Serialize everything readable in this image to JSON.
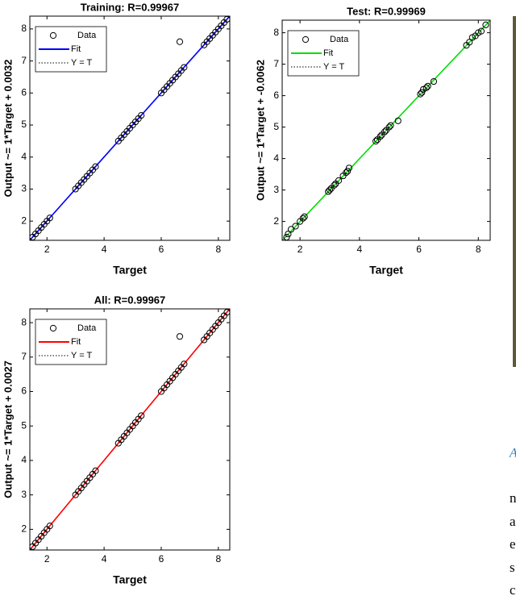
{
  "chart_data": [
    {
      "type": "scatter",
      "title": "Training: R=0.99967",
      "xlabel": "Target",
      "ylabel": "Output ~= 1*Target + 0.0032",
      "xlim": [
        1.4,
        8.4
      ],
      "ylim": [
        1.4,
        8.4
      ],
      "xticks": [
        2,
        4,
        6,
        8
      ],
      "yticks": [
        2,
        3,
        4,
        5,
        6,
        7,
        8
      ],
      "legend": "upper-left",
      "series": [
        {
          "name": "Data",
          "color": "#000000",
          "x": [
            1.5,
            1.6,
            1.7,
            1.8,
            1.9,
            2.0,
            2.1,
            3.0,
            3.1,
            3.2,
            3.3,
            3.4,
            3.5,
            3.6,
            3.7,
            4.5,
            4.6,
            4.7,
            4.8,
            4.9,
            5.0,
            5.1,
            5.2,
            5.3,
            6.0,
            6.1,
            6.2,
            6.3,
            6.4,
            6.5,
            6.6,
            6.7,
            6.8,
            7.5,
            7.6,
            7.7,
            7.8,
            7.9,
            8.0,
            8.1,
            8.2,
            8.3,
            6.65
          ],
          "y": [
            1.5,
            1.6,
            1.7,
            1.8,
            1.9,
            2.0,
            2.1,
            3.0,
            3.1,
            3.2,
            3.3,
            3.4,
            3.5,
            3.6,
            3.7,
            4.5,
            4.6,
            4.7,
            4.8,
            4.9,
            5.0,
            5.1,
            5.2,
            5.3,
            6.0,
            6.1,
            6.2,
            6.3,
            6.4,
            6.5,
            6.6,
            6.7,
            6.8,
            7.5,
            7.6,
            7.7,
            7.8,
            7.9,
            8.0,
            8.1,
            8.2,
            8.3,
            7.6
          ]
        },
        {
          "name": "Fit",
          "color": "#0000ff",
          "slope": 1,
          "intercept": 0.0032
        },
        {
          "name": "Y = T",
          "color": "#000000"
        }
      ]
    },
    {
      "type": "scatter",
      "title": "Test: R=0.99969",
      "xlabel": "Target",
      "ylabel": "Output ~= 1*Target + -0.0062",
      "xlim": [
        1.4,
        8.4
      ],
      "ylim": [
        1.4,
        8.4
      ],
      "xticks": [
        2,
        4,
        6,
        8
      ],
      "yticks": [
        2,
        3,
        4,
        5,
        6,
        7,
        8
      ],
      "legend": "upper-left",
      "series": [
        {
          "name": "Data",
          "color": "#000000",
          "x": [
            1.55,
            1.6,
            1.7,
            1.85,
            2.0,
            2.1,
            2.15,
            2.95,
            3.0,
            3.05,
            3.15,
            3.2,
            3.3,
            3.45,
            3.55,
            3.6,
            3.65,
            4.55,
            4.6,
            4.7,
            4.75,
            4.85,
            4.9,
            5.0,
            5.05,
            5.3,
            6.05,
            6.1,
            6.15,
            6.25,
            6.3,
            6.5,
            7.6,
            7.7,
            7.8,
            7.9,
            8.0,
            8.1,
            8.25
          ],
          "y": [
            1.5,
            1.6,
            1.75,
            1.85,
            2.0,
            2.1,
            2.15,
            2.95,
            3.0,
            3.05,
            3.15,
            3.2,
            3.3,
            3.45,
            3.55,
            3.6,
            3.7,
            4.55,
            4.6,
            4.7,
            4.75,
            4.85,
            4.9,
            5.0,
            5.05,
            5.2,
            6.05,
            6.1,
            6.2,
            6.25,
            6.3,
            6.45,
            7.6,
            7.7,
            7.85,
            7.9,
            8.0,
            8.05,
            8.25
          ]
        },
        {
          "name": "Fit",
          "color": "#00e000",
          "slope": 1,
          "intercept": -0.0062
        },
        {
          "name": "Y = T",
          "color": "#000000"
        }
      ]
    },
    {
      "type": "scatter",
      "title": "All: R=0.99967",
      "xlabel": "Target",
      "ylabel": "Output ~= 1*Target + 0.0027",
      "xlim": [
        1.4,
        8.4
      ],
      "ylim": [
        1.4,
        8.4
      ],
      "xticks": [
        2,
        4,
        6,
        8
      ],
      "yticks": [
        2,
        3,
        4,
        5,
        6,
        7,
        8
      ],
      "legend": "upper-left",
      "series": [
        {
          "name": "Data",
          "color": "#000000",
          "x": [
            1.5,
            1.6,
            1.7,
            1.8,
            1.9,
            2.0,
            2.1,
            3.0,
            3.1,
            3.2,
            3.3,
            3.4,
            3.5,
            3.6,
            3.7,
            4.5,
            4.6,
            4.7,
            4.8,
            4.9,
            5.0,
            5.1,
            5.2,
            5.3,
            6.0,
            6.1,
            6.2,
            6.3,
            6.4,
            6.5,
            6.6,
            6.7,
            6.8,
            7.5,
            7.6,
            7.7,
            7.8,
            7.9,
            8.0,
            8.1,
            8.2,
            8.3,
            6.65
          ],
          "y": [
            1.5,
            1.6,
            1.7,
            1.8,
            1.9,
            2.0,
            2.1,
            3.0,
            3.1,
            3.2,
            3.3,
            3.4,
            3.5,
            3.6,
            3.7,
            4.5,
            4.6,
            4.7,
            4.8,
            4.9,
            5.0,
            5.1,
            5.2,
            5.3,
            6.0,
            6.1,
            6.2,
            6.3,
            6.4,
            6.5,
            6.6,
            6.7,
            6.8,
            7.5,
            7.6,
            7.7,
            7.8,
            7.9,
            8.0,
            8.1,
            8.2,
            8.3,
            7.6
          ]
        },
        {
          "name": "Fit",
          "color": "#ff0000",
          "slope": 1,
          "intercept": 0.0027
        },
        {
          "name": "Y = T",
          "color": "#000000"
        }
      ]
    }
  ],
  "side_text": {
    "caption": "A",
    "lines": [
      "n",
      "a",
      "e",
      "s",
      "c"
    ]
  }
}
